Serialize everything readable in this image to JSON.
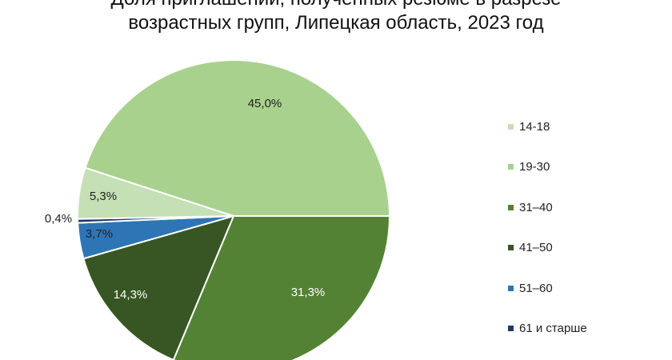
{
  "chart_data": {
    "type": "pie",
    "title_lines": [
      "Доля приглашений, полученных резюме в разрезе",
      "возрастных групп, Липецкая область, 2023 год"
    ],
    "categories": [
      "14-18",
      "19-30",
      "31–40",
      "41–50",
      "51–60",
      "61 и старше"
    ],
    "values": [
      5.3,
      45.0,
      31.3,
      14.3,
      3.7,
      0.4
    ],
    "data_labels": [
      "5,3%",
      "45,0%",
      "31,3%",
      "14,3%",
      "3,7%",
      "0,4%"
    ],
    "colors": [
      "#c5e0b4",
      "#a9d18e",
      "#548235",
      "#375623",
      "#2e75b6",
      "#1f3864"
    ],
    "legend_position": "right"
  }
}
